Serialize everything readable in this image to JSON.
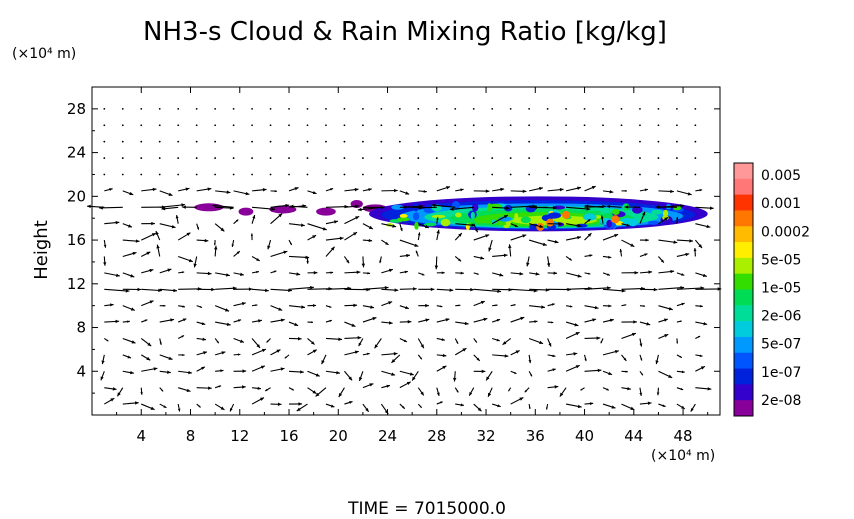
{
  "chart_data": {
    "type": "heatmap",
    "title": "NH3-s Cloud & Rain Mixing Ratio [kg/kg]",
    "y_unit": "(×10⁴ m)",
    "x_unit": "(×10⁴ m)",
    "ylabel": "Height",
    "xlabel": "",
    "footer": "TIME = 7015000.0",
    "xlim": [
      0,
      51
    ],
    "ylim": [
      0,
      30
    ],
    "x_ticks": [
      4,
      8,
      12,
      16,
      20,
      24,
      28,
      32,
      36,
      40,
      44,
      48
    ],
    "y_ticks": [
      4,
      8,
      12,
      16,
      20,
      24,
      28
    ],
    "colorbar": {
      "labels": [
        "0.005",
        "0.001",
        "0.0002",
        "5e-05",
        "1e-05",
        "2e-06",
        "5e-07",
        "1e-07",
        "2e-08"
      ],
      "colors": [
        "#ff9999",
        "#ff7777",
        "#ff3300",
        "#ff7700",
        "#ffbb00",
        "#ffee00",
        "#aaee00",
        "#33dd00",
        "#00dd55",
        "#00dd99",
        "#00ccdd",
        "#0099ff",
        "#0055ff",
        "#0022dd",
        "#3300cc",
        "#880099"
      ]
    },
    "cloud_layer": {
      "height_range": [
        17,
        19.5
      ],
      "x_range": [
        9,
        50
      ],
      "core_x_range": [
        30,
        42
      ]
    },
    "wind_vectors": "velocity field shown as arrows over the full domain"
  }
}
